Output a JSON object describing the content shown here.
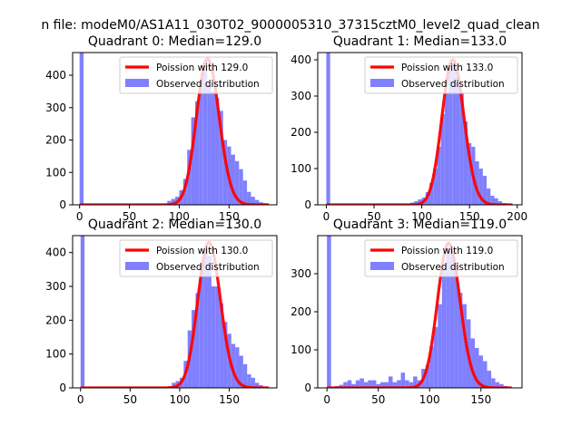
{
  "figure_title": "n file: modeM0/AS1A11_030T02_9000005310_37315cztM0_level2_quad_clean",
  "chart_data": [
    {
      "type": "bar",
      "title": "Quadrant 0: Median=129.0",
      "xlim": [
        -7,
        198
      ],
      "ylim": [
        0,
        470
      ],
      "xticks": [
        0,
        50,
        100,
        150
      ],
      "yticks": [
        0,
        100,
        200,
        300,
        400
      ],
      "legend_position": "top-right",
      "grid": false,
      "bin_width": 4,
      "bars": [
        {
          "x": 0,
          "y": 470
        },
        {
          "x": 4,
          "y": 0
        },
        {
          "x": 8,
          "y": 0
        },
        {
          "x": 12,
          "y": 0
        },
        {
          "x": 80,
          "y": 2
        },
        {
          "x": 84,
          "y": 3
        },
        {
          "x": 88,
          "y": 12
        },
        {
          "x": 92,
          "y": 18
        },
        {
          "x": 96,
          "y": 25
        },
        {
          "x": 100,
          "y": 45
        },
        {
          "x": 104,
          "y": 80
        },
        {
          "x": 108,
          "y": 170
        },
        {
          "x": 112,
          "y": 270
        },
        {
          "x": 116,
          "y": 320
        },
        {
          "x": 120,
          "y": 375
        },
        {
          "x": 124,
          "y": 430
        },
        {
          "x": 128,
          "y": 370
        },
        {
          "x": 132,
          "y": 350
        },
        {
          "x": 136,
          "y": 330
        },
        {
          "x": 140,
          "y": 290
        },
        {
          "x": 144,
          "y": 200
        },
        {
          "x": 148,
          "y": 180
        },
        {
          "x": 152,
          "y": 155
        },
        {
          "x": 156,
          "y": 135
        },
        {
          "x": 160,
          "y": 110
        },
        {
          "x": 164,
          "y": 75
        },
        {
          "x": 168,
          "y": 40
        },
        {
          "x": 172,
          "y": 25
        },
        {
          "x": 176,
          "y": 15
        },
        {
          "x": 180,
          "y": 8
        },
        {
          "x": 184,
          "y": 5
        }
      ],
      "series": [
        {
          "name": "Poission with 129.0",
          "kind": "poisson",
          "lambda": 129.0,
          "peak": 450,
          "x_range": [
            0,
            190
          ],
          "color": "#ff0000"
        },
        {
          "name": "Observed distribution",
          "kind": "histogram",
          "color": "#8080ff"
        }
      ]
    },
    {
      "type": "bar",
      "title": "Quadrant 1: Median=133.0",
      "xlim": [
        -9,
        205
      ],
      "ylim": [
        0,
        420
      ],
      "xticks": [
        0,
        50,
        100,
        150,
        200
      ],
      "yticks": [
        0,
        100,
        200,
        300,
        400
      ],
      "legend_position": "top-right",
      "grid": false,
      "bin_width": 4,
      "bars": [
        {
          "x": 0,
          "y": 420
        },
        {
          "x": 84,
          "y": 2
        },
        {
          "x": 88,
          "y": 6
        },
        {
          "x": 92,
          "y": 10
        },
        {
          "x": 96,
          "y": 15
        },
        {
          "x": 100,
          "y": 20
        },
        {
          "x": 104,
          "y": 35
        },
        {
          "x": 108,
          "y": 60
        },
        {
          "x": 112,
          "y": 100
        },
        {
          "x": 116,
          "y": 160
        },
        {
          "x": 120,
          "y": 250
        },
        {
          "x": 124,
          "y": 310
        },
        {
          "x": 128,
          "y": 380
        },
        {
          "x": 132,
          "y": 390
        },
        {
          "x": 136,
          "y": 355
        },
        {
          "x": 140,
          "y": 310
        },
        {
          "x": 144,
          "y": 230
        },
        {
          "x": 148,
          "y": 170
        },
        {
          "x": 152,
          "y": 160
        },
        {
          "x": 156,
          "y": 120
        },
        {
          "x": 160,
          "y": 100
        },
        {
          "x": 164,
          "y": 80
        },
        {
          "x": 168,
          "y": 45
        },
        {
          "x": 172,
          "y": 25
        },
        {
          "x": 176,
          "y": 18
        },
        {
          "x": 180,
          "y": 10
        },
        {
          "x": 184,
          "y": 5
        },
        {
          "x": 188,
          "y": 3
        }
      ],
      "series": [
        {
          "name": "Poission with 133.0",
          "kind": "poisson",
          "lambda": 133.0,
          "peak": 400,
          "x_range": [
            0,
            195
          ],
          "color": "#ff0000"
        },
        {
          "name": "Observed distribution",
          "kind": "histogram",
          "color": "#8080ff"
        }
      ]
    },
    {
      "type": "bar",
      "title": "Quadrant 2: Median=130.0",
      "xlim": [
        -8,
        198
      ],
      "ylim": [
        0,
        450
      ],
      "xticks": [
        0,
        50,
        100,
        150
      ],
      "yticks": [
        0,
        100,
        200,
        300,
        400
      ],
      "legend_position": "top-right",
      "grid": false,
      "bin_width": 4,
      "bars": [
        {
          "x": 0,
          "y": 450
        },
        {
          "x": 84,
          "y": 2
        },
        {
          "x": 88,
          "y": 5
        },
        {
          "x": 92,
          "y": 15
        },
        {
          "x": 96,
          "y": 20
        },
        {
          "x": 100,
          "y": 30
        },
        {
          "x": 104,
          "y": 80
        },
        {
          "x": 108,
          "y": 170
        },
        {
          "x": 112,
          "y": 230
        },
        {
          "x": 116,
          "y": 280
        },
        {
          "x": 120,
          "y": 360
        },
        {
          "x": 124,
          "y": 415
        },
        {
          "x": 128,
          "y": 390
        },
        {
          "x": 132,
          "y": 300
        },
        {
          "x": 136,
          "y": 300
        },
        {
          "x": 140,
          "y": 250
        },
        {
          "x": 144,
          "y": 195
        },
        {
          "x": 148,
          "y": 160
        },
        {
          "x": 152,
          "y": 130
        },
        {
          "x": 156,
          "y": 120
        },
        {
          "x": 160,
          "y": 95
        },
        {
          "x": 164,
          "y": 70
        },
        {
          "x": 168,
          "y": 40
        },
        {
          "x": 172,
          "y": 30
        },
        {
          "x": 176,
          "y": 15
        },
        {
          "x": 180,
          "y": 8
        },
        {
          "x": 184,
          "y": 4
        }
      ],
      "series": [
        {
          "name": "Poission with 130.0",
          "kind": "poisson",
          "lambda": 130.0,
          "peak": 430,
          "x_range": [
            0,
            190
          ],
          "color": "#ff0000"
        },
        {
          "name": "Observed distribution",
          "kind": "histogram",
          "color": "#8080ff"
        }
      ]
    },
    {
      "type": "bar",
      "title": "Quadrant 3: Median=119.0",
      "xlim": [
        -9,
        190
      ],
      "ylim": [
        0,
        400
      ],
      "xticks": [
        0,
        50,
        100,
        150
      ],
      "yticks": [
        0,
        100,
        200,
        300
      ],
      "legend_position": "top-right",
      "grid": false,
      "bin_width": 4,
      "bars": [
        {
          "x": 0,
          "y": 400
        },
        {
          "x": 8,
          "y": 5
        },
        {
          "x": 12,
          "y": 8
        },
        {
          "x": 16,
          "y": 15
        },
        {
          "x": 20,
          "y": 20
        },
        {
          "x": 24,
          "y": 10
        },
        {
          "x": 28,
          "y": 20
        },
        {
          "x": 32,
          "y": 25
        },
        {
          "x": 36,
          "y": 15
        },
        {
          "x": 40,
          "y": 20
        },
        {
          "x": 44,
          "y": 20
        },
        {
          "x": 48,
          "y": 10
        },
        {
          "x": 52,
          "y": 15
        },
        {
          "x": 56,
          "y": 15
        },
        {
          "x": 60,
          "y": 30
        },
        {
          "x": 64,
          "y": 15
        },
        {
          "x": 68,
          "y": 20
        },
        {
          "x": 72,
          "y": 40
        },
        {
          "x": 76,
          "y": 20
        },
        {
          "x": 80,
          "y": 15
        },
        {
          "x": 84,
          "y": 30
        },
        {
          "x": 88,
          "y": 20
        },
        {
          "x": 92,
          "y": 50
        },
        {
          "x": 96,
          "y": 60
        },
        {
          "x": 100,
          "y": 110
        },
        {
          "x": 104,
          "y": 160
        },
        {
          "x": 108,
          "y": 220
        },
        {
          "x": 112,
          "y": 320
        },
        {
          "x": 116,
          "y": 370
        },
        {
          "x": 120,
          "y": 360
        },
        {
          "x": 124,
          "y": 330
        },
        {
          "x": 128,
          "y": 250
        },
        {
          "x": 132,
          "y": 220
        },
        {
          "x": 136,
          "y": 180
        },
        {
          "x": 140,
          "y": 130
        },
        {
          "x": 144,
          "y": 105
        },
        {
          "x": 148,
          "y": 85
        },
        {
          "x": 152,
          "y": 70
        },
        {
          "x": 156,
          "y": 45
        },
        {
          "x": 160,
          "y": 25
        },
        {
          "x": 164,
          "y": 15
        },
        {
          "x": 168,
          "y": 10
        },
        {
          "x": 172,
          "y": 5
        }
      ],
      "series": [
        {
          "name": "Poission with 119.0",
          "kind": "poisson",
          "lambda": 119.0,
          "peak": 380,
          "x_range": [
            0,
            180
          ],
          "color": "#ff0000"
        },
        {
          "name": "Observed distribution",
          "kind": "histogram",
          "color": "#8080ff"
        }
      ]
    }
  ]
}
